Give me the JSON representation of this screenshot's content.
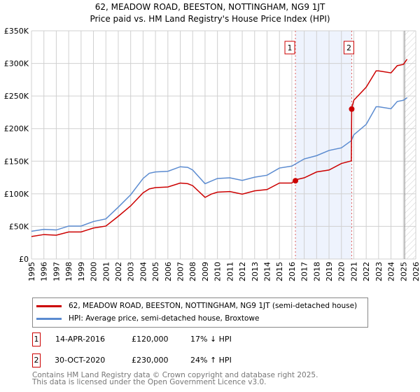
{
  "chart_data": {
    "type": "line",
    "title": "62, MEADOW ROAD, BEESTON, NOTTINGHAM, NG9 1JT",
    "subtitle": "Price paid vs. HM Land Registry's House Price Index (HPI)",
    "xlim": [
      1995,
      2026
    ],
    "ylim": [
      0,
      350000
    ],
    "yticks": [
      0,
      50000,
      100000,
      150000,
      200000,
      250000,
      300000,
      350000
    ],
    "ytick_labels": [
      "£0",
      "£50K",
      "£100K",
      "£150K",
      "£200K",
      "£250K",
      "£300K",
      "£350K"
    ],
    "xticks": [
      "1995",
      "1996",
      "1997",
      "1998",
      "1999",
      "2000",
      "2001",
      "2002",
      "2003",
      "2004",
      "2005",
      "2006",
      "2007",
      "2008",
      "2009",
      "2010",
      "2011",
      "2012",
      "2013",
      "2014",
      "2015",
      "2016",
      "2017",
      "2018",
      "2019",
      "2020",
      "2021",
      "2022",
      "2023",
      "2024",
      "2025",
      "2026"
    ],
    "grid": true,
    "shaded_range": [
      2016.29,
      2020.83
    ],
    "forecast_hatch_from": 2025.1,
    "series": [
      {
        "name": "HPI: Average price, semi-detached house, Broxtowe",
        "color": "#5b8bd0",
        "x": [
          1995,
          1996,
          1997,
          1998,
          1999,
          2000,
          2001,
          2002,
          2003,
          2004,
          2004.5,
          2005,
          2006,
          2007,
          2007.6,
          2008,
          2009,
          2009.5,
          2010,
          2011,
          2012,
          2013,
          2014,
          2015,
          2016,
          2017,
          2018,
          2019,
          2020,
          2020.8,
          2021,
          2022,
          2022.8,
          2023,
          2024,
          2024.5,
          2025,
          2025.3
        ],
        "y": [
          44000,
          44000,
          46000,
          49000,
          52000,
          56000,
          63000,
          78000,
          100000,
          122000,
          133000,
          132000,
          136000,
          140000,
          142000,
          135000,
          117000,
          118000,
          125000,
          123000,
          122000,
          124000,
          130000,
          138000,
          144000,
          152000,
          160000,
          165000,
          172000,
          180000,
          192000,
          205000,
          235000,
          232000,
          232000,
          240000,
          245000,
          246000
        ]
      },
      {
        "name": "62, MEADOW ROAD, BEESTON, NOTTINGHAM, NG9 1JT (semi-detached house)",
        "color": "#cc0000",
        "x": [
          1995,
          1996,
          1997,
          1998,
          1999,
          2000,
          2001,
          2002,
          2003,
          2004,
          2004.5,
          2005,
          2006,
          2007,
          2007.6,
          2008,
          2009,
          2009.5,
          2010,
          2011,
          2012,
          2013,
          2014,
          2015,
          2016,
          2016.29,
          2017,
          2018,
          2019,
          2020,
          2020.8,
          2020.83,
          2021,
          2022,
          2022.8,
          2023,
          2024,
          2024.5,
          2025,
          2025.3
        ],
        "y": [
          36000,
          36000,
          38000,
          40000,
          43000,
          46000,
          52000,
          64000,
          83000,
          100000,
          109000,
          108000,
          112000,
          115000,
          117000,
          111000,
          96000,
          98000,
          104000,
          102000,
          101000,
          103000,
          108000,
          115000,
          118000,
          120000,
          126000,
          132000,
          138000,
          145000,
          152000,
          230000,
          245000,
          262000,
          290000,
          287000,
          287000,
          295000,
          300000,
          305000
        ]
      }
    ],
    "sales": [
      {
        "label": "1",
        "x": 2016.29,
        "y": 120000,
        "date": "14-APR-2016",
        "price": "£120,000",
        "hpi": "17% ↓ HPI"
      },
      {
        "label": "2",
        "x": 2020.83,
        "y": 230000,
        "date": "30-OCT-2020",
        "price": "£230,000",
        "hpi": "24% ↑ HPI"
      }
    ]
  },
  "legend": {
    "red": "62, MEADOW ROAD, BEESTON, NOTTINGHAM, NG9 1JT (semi-detached house)",
    "blue": "HPI: Average price, semi-detached house, Broxtowe"
  },
  "footer": {
    "line1": "Contains HM Land Registry data © Crown copyright and database right 2025.",
    "line2": "This data is licensed under the Open Government Licence v3.0."
  }
}
